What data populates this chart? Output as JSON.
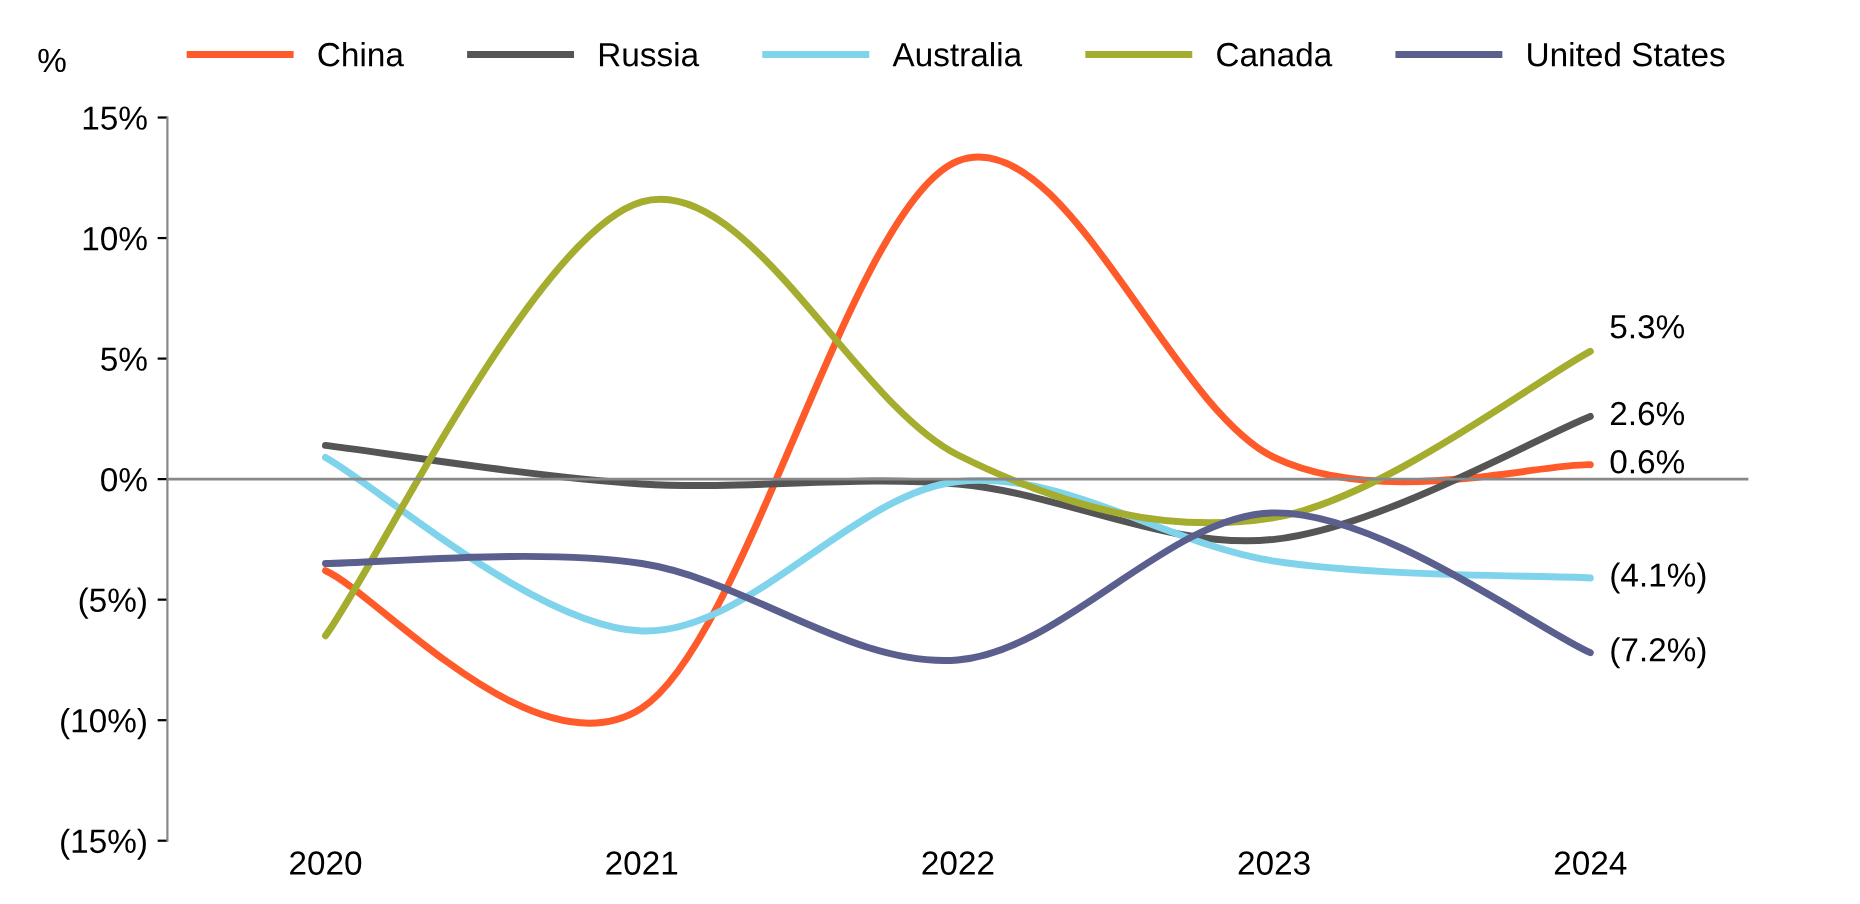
{
  "chart_data": {
    "type": "line",
    "ylabel": "%",
    "categories": [
      "2020",
      "2021",
      "2022",
      "2023",
      "2024"
    ],
    "series": [
      {
        "name": "China",
        "color": "#ff5a2a",
        "values": [
          -3.8,
          -9.5,
          13.2,
          0.9,
          0.6
        ],
        "value_labels": [
          null,
          null,
          null,
          null,
          "0.6%"
        ]
      },
      {
        "name": "Russia",
        "color": "#555555",
        "values": [
          1.4,
          -0.2,
          -0.2,
          -2.5,
          2.6
        ],
        "value_labels": [
          null,
          null,
          null,
          null,
          "2.6%"
        ]
      },
      {
        "name": "Australia",
        "color": "#7fd3ea",
        "values": [
          0.9,
          -6.3,
          -0.1,
          -3.4,
          -4.1
        ],
        "value_labels": [
          null,
          null,
          null,
          null,
          "(4.1%)"
        ]
      },
      {
        "name": "Canada",
        "color": "#a4ad2e",
        "values": [
          -6.5,
          11.5,
          1.0,
          -1.6,
          5.3
        ],
        "value_labels": [
          null,
          null,
          null,
          null,
          "5.3%"
        ]
      },
      {
        "name": "United States",
        "color": "#5a5f8e",
        "values": [
          -3.5,
          -3.5,
          -7.5,
          -1.4,
          -7.2
        ],
        "value_labels": [
          null,
          null,
          null,
          null,
          "(7.2%)"
        ]
      }
    ],
    "ylim": [
      -15,
      15
    ],
    "yticks": [
      {
        "value": -15,
        "label": "(15%)"
      },
      {
        "value": -10,
        "label": "(10%)"
      },
      {
        "value": -5,
        "label": "(5%)"
      },
      {
        "value": 0,
        "label": "0%"
      },
      {
        "value": 5,
        "label": "5%"
      },
      {
        "value": 10,
        "label": "10%"
      },
      {
        "value": 15,
        "label": "15%"
      }
    ],
    "ref_lines": [
      {
        "axis": "y",
        "value": 0,
        "color": "#888888"
      }
    ],
    "grid": false,
    "legend": "top",
    "marker": "none",
    "line_style": "solid"
  }
}
